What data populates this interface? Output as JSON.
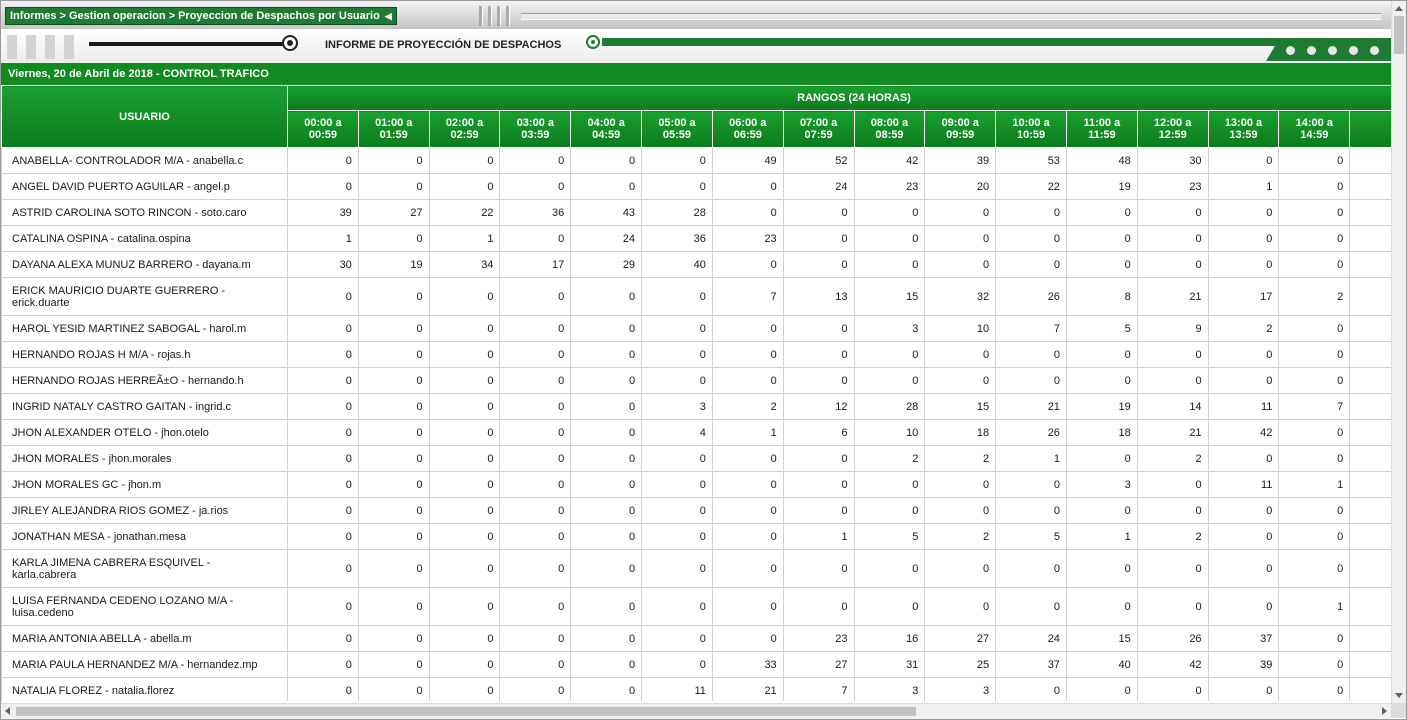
{
  "breadcrumb": "Informes > Gestion operacion > Proyeccion de Despachos por Usuario",
  "breadcrumb_arrow": "◀",
  "report_title": "INFORME DE PROYECCIÓN DE DESPACHOS",
  "date_line": "Viernes, 20 de Abril de 2018 - CONTROL TRAFICO",
  "colors": {
    "accent": "#128a22",
    "dark_green": "#1f7a32"
  },
  "table": {
    "user_header": "USUARIO",
    "group_header": "RANGOS (24 HORAS)",
    "hours": [
      [
        "00:00 a",
        "00:59"
      ],
      [
        "01:00 a",
        "01:59"
      ],
      [
        "02:00 a",
        "02:59"
      ],
      [
        "03:00 a",
        "03:59"
      ],
      [
        "04:00 a",
        "04:59"
      ],
      [
        "05:00 a",
        "05:59"
      ],
      [
        "06:00 a",
        "06:59"
      ],
      [
        "07:00 a",
        "07:59"
      ],
      [
        "08:00 a",
        "08:59"
      ],
      [
        "09:00 a",
        "09:59"
      ],
      [
        "10:00 a",
        "10:59"
      ],
      [
        "11:00 a",
        "11:59"
      ],
      [
        "12:00 a",
        "12:59"
      ],
      [
        "13:00 a",
        "13:59"
      ],
      [
        "14:00 a",
        "14:59"
      ],
      [
        "",
        ""
      ]
    ],
    "rows": [
      {
        "user": [
          "ANABELLA- CONTROLADOR M/A - anabella.c"
        ],
        "values": [
          "0",
          "0",
          "0",
          "0",
          "0",
          "0",
          "49",
          "52",
          "42",
          "39",
          "53",
          "48",
          "30",
          "0",
          "0",
          ""
        ]
      },
      {
        "user": [
          "ANGEL DAVID PUERTO AGUILAR - angel.p"
        ],
        "values": [
          "0",
          "0",
          "0",
          "0",
          "0",
          "0",
          "0",
          "24",
          "23",
          "20",
          "22",
          "19",
          "23",
          "1",
          "0",
          ""
        ]
      },
      {
        "user": [
          "ASTRID CAROLINA SOTO RINCON - soto.caro"
        ],
        "values": [
          "39",
          "27",
          "22",
          "36",
          "43",
          "28",
          "0",
          "0",
          "0",
          "0",
          "0",
          "0",
          "0",
          "0",
          "0",
          ""
        ]
      },
      {
        "user": [
          "CATALINA OSPINA - catalina.ospina"
        ],
        "values": [
          "1",
          "0",
          "1",
          "0",
          "24",
          "36",
          "23",
          "0",
          "0",
          "0",
          "0",
          "0",
          "0",
          "0",
          "0",
          ""
        ]
      },
      {
        "user": [
          "DAYANA ALEXA MUNUZ BARRERO - dayana.m"
        ],
        "values": [
          "30",
          "19",
          "34",
          "17",
          "29",
          "40",
          "0",
          "0",
          "0",
          "0",
          "0",
          "0",
          "0",
          "0",
          "0",
          ""
        ]
      },
      {
        "user": [
          "ERICK MAURICIO DUARTE GUERRERO -",
          "erick.duarte"
        ],
        "values": [
          "0",
          "0",
          "0",
          "0",
          "0",
          "0",
          "7",
          "13",
          "15",
          "32",
          "26",
          "8",
          "21",
          "17",
          "2",
          ""
        ]
      },
      {
        "user": [
          "HAROL YESID MARTINEZ SABOGAL - harol.m"
        ],
        "values": [
          "0",
          "0",
          "0",
          "0",
          "0",
          "0",
          "0",
          "0",
          "3",
          "10",
          "7",
          "5",
          "9",
          "2",
          "0",
          ""
        ]
      },
      {
        "user": [
          "HERNANDO ROJAS H M/A - rojas.h"
        ],
        "values": [
          "0",
          "0",
          "0",
          "0",
          "0",
          "0",
          "0",
          "0",
          "0",
          "0",
          "0",
          "0",
          "0",
          "0",
          "0",
          ""
        ]
      },
      {
        "user": [
          "HERNANDO ROJAS HERREÃ±O - hernando.h"
        ],
        "values": [
          "0",
          "0",
          "0",
          "0",
          "0",
          "0",
          "0",
          "0",
          "0",
          "0",
          "0",
          "0",
          "0",
          "0",
          "0",
          ""
        ]
      },
      {
        "user": [
          "INGRID NATALY CASTRO GAITAN - ingrid.c"
        ],
        "values": [
          "0",
          "0",
          "0",
          "0",
          "0",
          "3",
          "2",
          "12",
          "28",
          "15",
          "21",
          "19",
          "14",
          "11",
          "7",
          ""
        ]
      },
      {
        "user": [
          "JHON ALEXANDER OTELO - jhon.otelo"
        ],
        "values": [
          "0",
          "0",
          "0",
          "0",
          "0",
          "4",
          "1",
          "6",
          "10",
          "18",
          "26",
          "18",
          "21",
          "42",
          "0",
          ""
        ]
      },
      {
        "user": [
          "JHON MORALES - jhon.morales"
        ],
        "values": [
          "0",
          "0",
          "0",
          "0",
          "0",
          "0",
          "0",
          "0",
          "2",
          "2",
          "1",
          "0",
          "2",
          "0",
          "0",
          ""
        ]
      },
      {
        "user": [
          "JHON MORALES GC - jhon.m"
        ],
        "values": [
          "0",
          "0",
          "0",
          "0",
          "0",
          "0",
          "0",
          "0",
          "0",
          "0",
          "0",
          "3",
          "0",
          "11",
          "1",
          ""
        ]
      },
      {
        "user": [
          "JIRLEY ALEJANDRA RIOS GOMEZ - ja.rios"
        ],
        "values": [
          "0",
          "0",
          "0",
          "0",
          "0",
          "0",
          "0",
          "0",
          "0",
          "0",
          "0",
          "0",
          "0",
          "0",
          "0",
          ""
        ]
      },
      {
        "user": [
          "JONATHAN MESA - jonathan.mesa"
        ],
        "values": [
          "0",
          "0",
          "0",
          "0",
          "0",
          "0",
          "0",
          "1",
          "5",
          "2",
          "5",
          "1",
          "2",
          "0",
          "0",
          ""
        ]
      },
      {
        "user": [
          "KARLA JIMENA CABRERA ESQUIVEL -",
          "karla.cabrera"
        ],
        "values": [
          "0",
          "0",
          "0",
          "0",
          "0",
          "0",
          "0",
          "0",
          "0",
          "0",
          "0",
          "0",
          "0",
          "0",
          "0",
          ""
        ]
      },
      {
        "user": [
          "LUISA FERNANDA CEDENO LOZANO M/A -",
          "luisa.cedeno"
        ],
        "values": [
          "0",
          "0",
          "0",
          "0",
          "0",
          "0",
          "0",
          "0",
          "0",
          "0",
          "0",
          "0",
          "0",
          "0",
          "1",
          ""
        ]
      },
      {
        "user": [
          "MARIA ANTONIA ABELLA - abella.m"
        ],
        "values": [
          "0",
          "0",
          "0",
          "0",
          "0",
          "0",
          "0",
          "23",
          "16",
          "27",
          "24",
          "15",
          "26",
          "37",
          "0",
          ""
        ]
      },
      {
        "user": [
          "MARIA PAULA HERNANDEZ M/A - hernandez.mp"
        ],
        "values": [
          "0",
          "0",
          "0",
          "0",
          "0",
          "0",
          "33",
          "27",
          "31",
          "25",
          "37",
          "40",
          "42",
          "39",
          "0",
          ""
        ]
      },
      {
        "user": [
          "NATALIA FLOREZ - natalia.florez"
        ],
        "values": [
          "0",
          "0",
          "0",
          "0",
          "0",
          "11",
          "21",
          "7",
          "3",
          "3",
          "0",
          "0",
          "0",
          "0",
          "0",
          ""
        ]
      }
    ]
  }
}
